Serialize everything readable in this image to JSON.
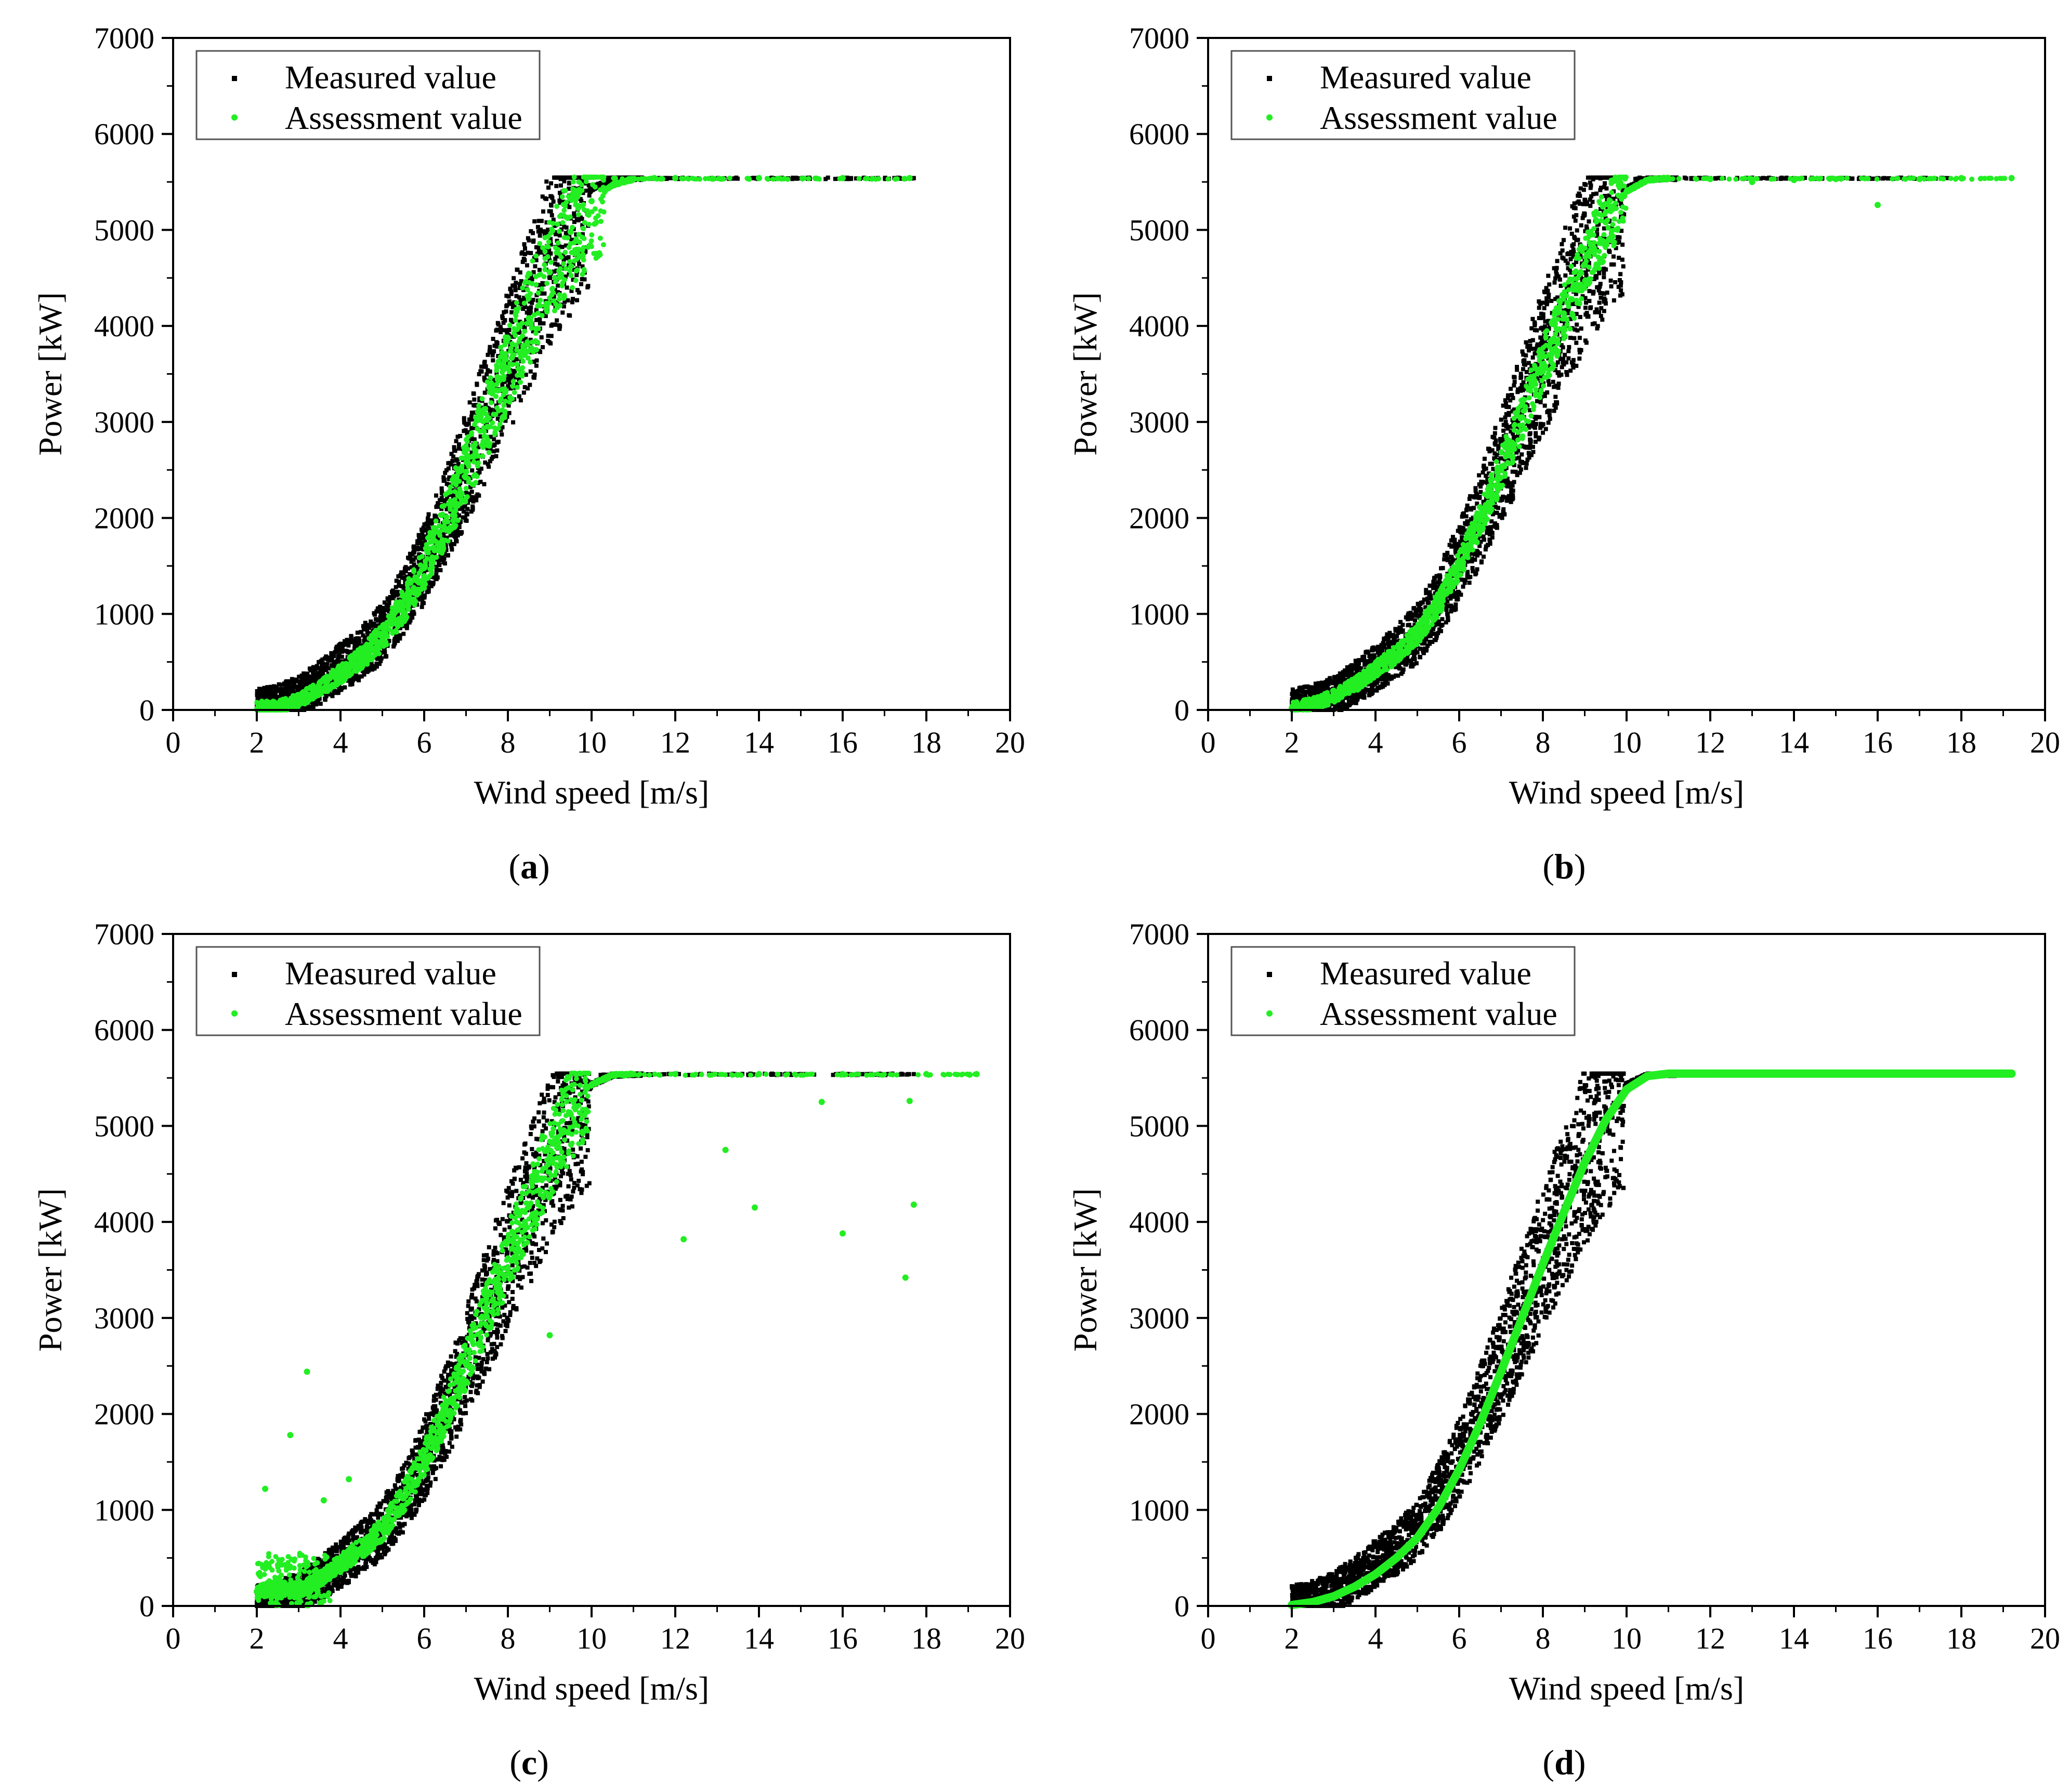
{
  "chart_data": [
    {
      "type": "scatter",
      "panel": "a",
      "caption": "a",
      "xlabel": "Wind speed [m/s]",
      "ylabel": "Power [kW]",
      "xlim": [
        0,
        20
      ],
      "ylim": [
        0,
        7000
      ],
      "xticks": [
        0,
        2,
        4,
        6,
        8,
        10,
        12,
        14,
        16,
        18,
        20
      ],
      "yticks": [
        0,
        1000,
        2000,
        3000,
        4000,
        5000,
        6000,
        7000
      ],
      "legend_position": "top-left",
      "series": [
        {
          "name": "Measured value",
          "color": "#000000",
          "marker": "square",
          "points": [
            [
              2.0,
              30
            ],
            [
              2.5,
              70
            ],
            [
              3.0,
              150
            ],
            [
              3.5,
              280
            ],
            [
              4.0,
              440
            ],
            [
              4.5,
              600
            ],
            [
              5.0,
              800
            ],
            [
              5.5,
              1120
            ],
            [
              6.0,
              1520
            ],
            [
              6.5,
              2000
            ],
            [
              7.0,
              2520
            ],
            [
              7.5,
              3080
            ],
            [
              8.0,
              3620
            ],
            [
              8.5,
              4160
            ],
            [
              9.0,
              4680
            ],
            [
              9.5,
              5120
            ],
            [
              10.0,
              5430
            ],
            [
              10.5,
              5530
            ],
            [
              11.0,
              5540
            ],
            [
              12.0,
              5540
            ],
            [
              14.0,
              5540
            ],
            [
              16.2,
              5540
            ],
            [
              17.7,
              5540
            ]
          ]
        },
        {
          "name": "Assessment value",
          "color": "#22ee22",
          "marker": "circle",
          "points": [
            [
              2.5,
              30
            ],
            [
              3.0,
              100
            ],
            [
              3.5,
              220
            ],
            [
              4.0,
              380
            ],
            [
              4.5,
              540
            ],
            [
              5.0,
              760
            ],
            [
              5.5,
              1080
            ],
            [
              6.0,
              1480
            ],
            [
              6.5,
              1960
            ],
            [
              7.0,
              2480
            ],
            [
              7.5,
              3020
            ],
            [
              8.0,
              3560
            ],
            [
              8.5,
              4080
            ],
            [
              9.0,
              4560
            ],
            [
              9.5,
              4980
            ],
            [
              10.0,
              5300
            ],
            [
              10.5,
              5470
            ],
            [
              11.0,
              5530
            ],
            [
              11.5,
              5540
            ],
            [
              12.0,
              5540
            ],
            [
              14.0,
              5540
            ],
            [
              16.0,
              5540
            ],
            [
              17.6,
              5540
            ]
          ]
        }
      ]
    },
    {
      "type": "scatter",
      "panel": "b",
      "caption": "b",
      "xlabel": "Wind speed [m/s]",
      "ylabel": "Power [kW]",
      "xlim": [
        0,
        20
      ],
      "ylim": [
        0,
        7000
      ],
      "xticks": [
        0,
        2,
        4,
        6,
        8,
        10,
        12,
        14,
        16,
        18,
        20
      ],
      "yticks": [
        0,
        1000,
        2000,
        3000,
        4000,
        5000,
        6000,
        7000
      ],
      "legend_position": "top-left",
      "series": [
        {
          "name": "Measured value",
          "color": "#000000",
          "marker": "square",
          "points": [
            [
              2.0,
              30
            ],
            [
              2.5,
              70
            ],
            [
              3.0,
              150
            ],
            [
              3.5,
              280
            ],
            [
              4.0,
              440
            ],
            [
              4.5,
              600
            ],
            [
              5.0,
              800
            ],
            [
              5.5,
              1120
            ],
            [
              6.0,
              1520
            ],
            [
              6.5,
              2000
            ],
            [
              7.0,
              2520
            ],
            [
              7.5,
              3080
            ],
            [
              8.0,
              3620
            ],
            [
              8.5,
              4160
            ],
            [
              9.0,
              4680
            ],
            [
              9.5,
              5120
            ],
            [
              10.0,
              5430
            ],
            [
              10.5,
              5530
            ],
            [
              11.0,
              5540
            ],
            [
              12.0,
              5540
            ],
            [
              14.0,
              5540
            ],
            [
              16.0,
              5540
            ],
            [
              17.7,
              5540
            ]
          ]
        },
        {
          "name": "Assessment value",
          "color": "#22ee22",
          "marker": "circle",
          "points": [
            [
              2.0,
              20
            ],
            [
              2.5,
              60
            ],
            [
              3.0,
              140
            ],
            [
              3.5,
              260
            ],
            [
              4.0,
              420
            ],
            [
              4.5,
              580
            ],
            [
              5.0,
              790
            ],
            [
              5.5,
              1100
            ],
            [
              6.0,
              1500
            ],
            [
              6.5,
              1980
            ],
            [
              7.0,
              2500
            ],
            [
              7.5,
              3050
            ],
            [
              8.0,
              3600
            ],
            [
              8.5,
              4130
            ],
            [
              9.0,
              4640
            ],
            [
              9.5,
              5080
            ],
            [
              10.0,
              5400
            ],
            [
              10.5,
              5520
            ],
            [
              11.0,
              5540
            ],
            [
              12.0,
              5530
            ],
            [
              13.0,
              5500
            ],
            [
              14.0,
              5520
            ],
            [
              15.0,
              5530
            ],
            [
              16.0,
              5260
            ],
            [
              17.0,
              5530
            ],
            [
              18.0,
              5540
            ],
            [
              19.2,
              5540
            ]
          ]
        }
      ]
    },
    {
      "type": "scatter",
      "panel": "c",
      "caption": "c",
      "xlabel": "Wind speed [m/s]",
      "ylabel": "Power [kW]",
      "xlim": [
        0,
        20
      ],
      "ylim": [
        0,
        7000
      ],
      "xticks": [
        0,
        2,
        4,
        6,
        8,
        10,
        12,
        14,
        16,
        18,
        20
      ],
      "yticks": [
        0,
        1000,
        2000,
        3000,
        4000,
        5000,
        6000,
        7000
      ],
      "legend_position": "top-left",
      "series": [
        {
          "name": "Measured value",
          "color": "#000000",
          "marker": "square",
          "points": [
            [
              2.0,
              30
            ],
            [
              2.5,
              70
            ],
            [
              3.0,
              150
            ],
            [
              3.5,
              280
            ],
            [
              4.0,
              440
            ],
            [
              4.5,
              600
            ],
            [
              5.0,
              800
            ],
            [
              5.5,
              1120
            ],
            [
              6.0,
              1520
            ],
            [
              6.5,
              2000
            ],
            [
              7.0,
              2520
            ],
            [
              7.5,
              3080
            ],
            [
              8.0,
              3620
            ],
            [
              8.5,
              4160
            ],
            [
              9.0,
              4680
            ],
            [
              9.5,
              5120
            ],
            [
              10.0,
              5430
            ],
            [
              10.5,
              5530
            ],
            [
              11.0,
              5540
            ],
            [
              12.0,
              5540
            ],
            [
              14.0,
              5540
            ],
            [
              16.0,
              5540
            ],
            [
              17.7,
              5540
            ]
          ]
        },
        {
          "name": "Assessment value",
          "color": "#22ee22",
          "marker": "circle",
          "points": [
            [
              2.0,
              150
            ],
            [
              2.5,
              200
            ],
            [
              3.0,
              150
            ],
            [
              3.5,
              280
            ],
            [
              4.0,
              440
            ],
            [
              4.5,
              600
            ],
            [
              5.0,
              800
            ],
            [
              5.5,
              1120
            ],
            [
              6.0,
              1520
            ],
            [
              6.5,
              2000
            ],
            [
              7.0,
              2520
            ],
            [
              7.5,
              3080
            ],
            [
              8.0,
              3620
            ],
            [
              8.5,
              4160
            ],
            [
              9.0,
              4680
            ],
            [
              9.5,
              5120
            ],
            [
              10.0,
              5430
            ],
            [
              10.5,
              5530
            ],
            [
              11.0,
              5540
            ],
            [
              12.0,
              5540
            ],
            [
              14.0,
              5540
            ],
            [
              16.0,
              5540
            ],
            [
              18.0,
              5540
            ],
            [
              19.2,
              5540
            ],
            [
              3.2,
              2440
            ],
            [
              2.8,
              1780
            ],
            [
              2.2,
              1220
            ],
            [
              3.6,
              1100
            ],
            [
              4.2,
              1320
            ],
            [
              12.2,
              3820
            ],
            [
              13.9,
              4150
            ],
            [
              16.0,
              3880
            ],
            [
              17.5,
              3420
            ],
            [
              17.7,
              4180
            ],
            [
              13.2,
              4750
            ],
            [
              15.5,
              5250
            ],
            [
              17.6,
              5260
            ],
            [
              9.0,
              2820
            ]
          ]
        }
      ]
    },
    {
      "type": "scatter",
      "panel": "d",
      "caption": "d",
      "xlabel": "Wind speed [m/s]",
      "ylabel": "Power [kW]",
      "xlim": [
        0,
        20
      ],
      "ylim": [
        0,
        7000
      ],
      "xticks": [
        0,
        2,
        4,
        6,
        8,
        10,
        12,
        14,
        16,
        18,
        20
      ],
      "yticks": [
        0,
        1000,
        2000,
        3000,
        4000,
        5000,
        6000,
        7000
      ],
      "legend_position": "top-left",
      "series": [
        {
          "name": "Measured value",
          "color": "#000000",
          "marker": "square",
          "points": [
            [
              2.0,
              30
            ],
            [
              2.5,
              70
            ],
            [
              3.0,
              150
            ],
            [
              3.5,
              280
            ],
            [
              4.0,
              440
            ],
            [
              4.5,
              600
            ],
            [
              5.0,
              800
            ],
            [
              5.5,
              1120
            ],
            [
              6.0,
              1520
            ],
            [
              6.5,
              2000
            ],
            [
              7.0,
              2520
            ],
            [
              7.5,
              3080
            ],
            [
              8.0,
              3620
            ],
            [
              8.5,
              4160
            ],
            [
              9.0,
              4680
            ],
            [
              9.5,
              5120
            ],
            [
              10.0,
              5430
            ],
            [
              10.5,
              5530
            ],
            [
              11.0,
              5540
            ],
            [
              12.0,
              5540
            ],
            [
              14.0,
              5540
            ],
            [
              16.0,
              5540
            ],
            [
              17.7,
              5540
            ]
          ]
        },
        {
          "name": "Assessment value",
          "color": "#22ee22",
          "marker": "circle",
          "points": [
            [
              2.0,
              10
            ],
            [
              2.5,
              40
            ],
            [
              3.0,
              100
            ],
            [
              3.5,
              200
            ],
            [
              4.0,
              330
            ],
            [
              4.5,
              500
            ],
            [
              5.0,
              710
            ],
            [
              5.5,
              1020
            ],
            [
              6.0,
              1420
            ],
            [
              6.5,
              1900
            ],
            [
              7.0,
              2440
            ],
            [
              7.5,
              3000
            ],
            [
              8.0,
              3560
            ],
            [
              8.5,
              4100
            ],
            [
              9.0,
              4620
            ],
            [
              9.5,
              5060
            ],
            [
              10.0,
              5380
            ],
            [
              10.5,
              5520
            ],
            [
              11.0,
              5545
            ],
            [
              12.0,
              5545
            ],
            [
              14.0,
              5545
            ],
            [
              16.0,
              5545
            ],
            [
              18.0,
              5545
            ],
            [
              19.2,
              5545
            ]
          ]
        }
      ]
    }
  ]
}
